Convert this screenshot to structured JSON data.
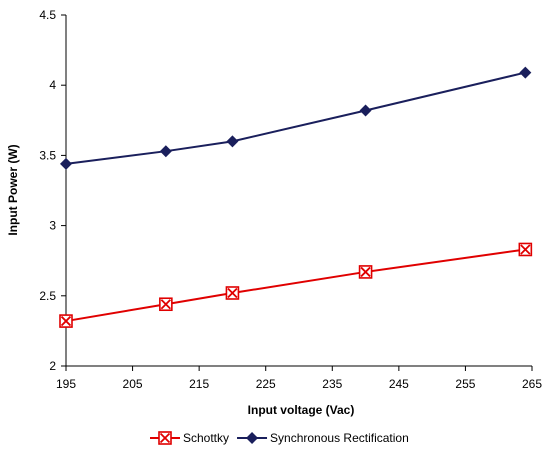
{
  "chart_data": {
    "type": "line",
    "xlabel": "Input voltage (Vac)",
    "ylabel": "Input Power (W)",
    "xlim": [
      195,
      265
    ],
    "ylim": [
      2,
      4.5
    ],
    "x_ticks": [
      "195",
      "205",
      "215",
      "225",
      "235",
      "245",
      "255",
      "265"
    ],
    "y_ticks": [
      "2",
      "2.5",
      "3",
      "3.5",
      "4",
      "4.5"
    ],
    "grid": false,
    "legend_position": "bottom",
    "series": [
      {
        "name": "Schottky",
        "color": "#e00000",
        "marker": "boxed-x",
        "x": [
          195,
          210,
          220,
          240,
          264
        ],
        "y": [
          2.32,
          2.44,
          2.52,
          2.67,
          2.83
        ]
      },
      {
        "name": "Synchronous Rectification",
        "color": "#1a1f5c",
        "marker": "diamond",
        "x": [
          195,
          210,
          220,
          240,
          264
        ],
        "y": [
          3.44,
          3.53,
          3.6,
          3.82,
          4.09
        ]
      }
    ]
  }
}
